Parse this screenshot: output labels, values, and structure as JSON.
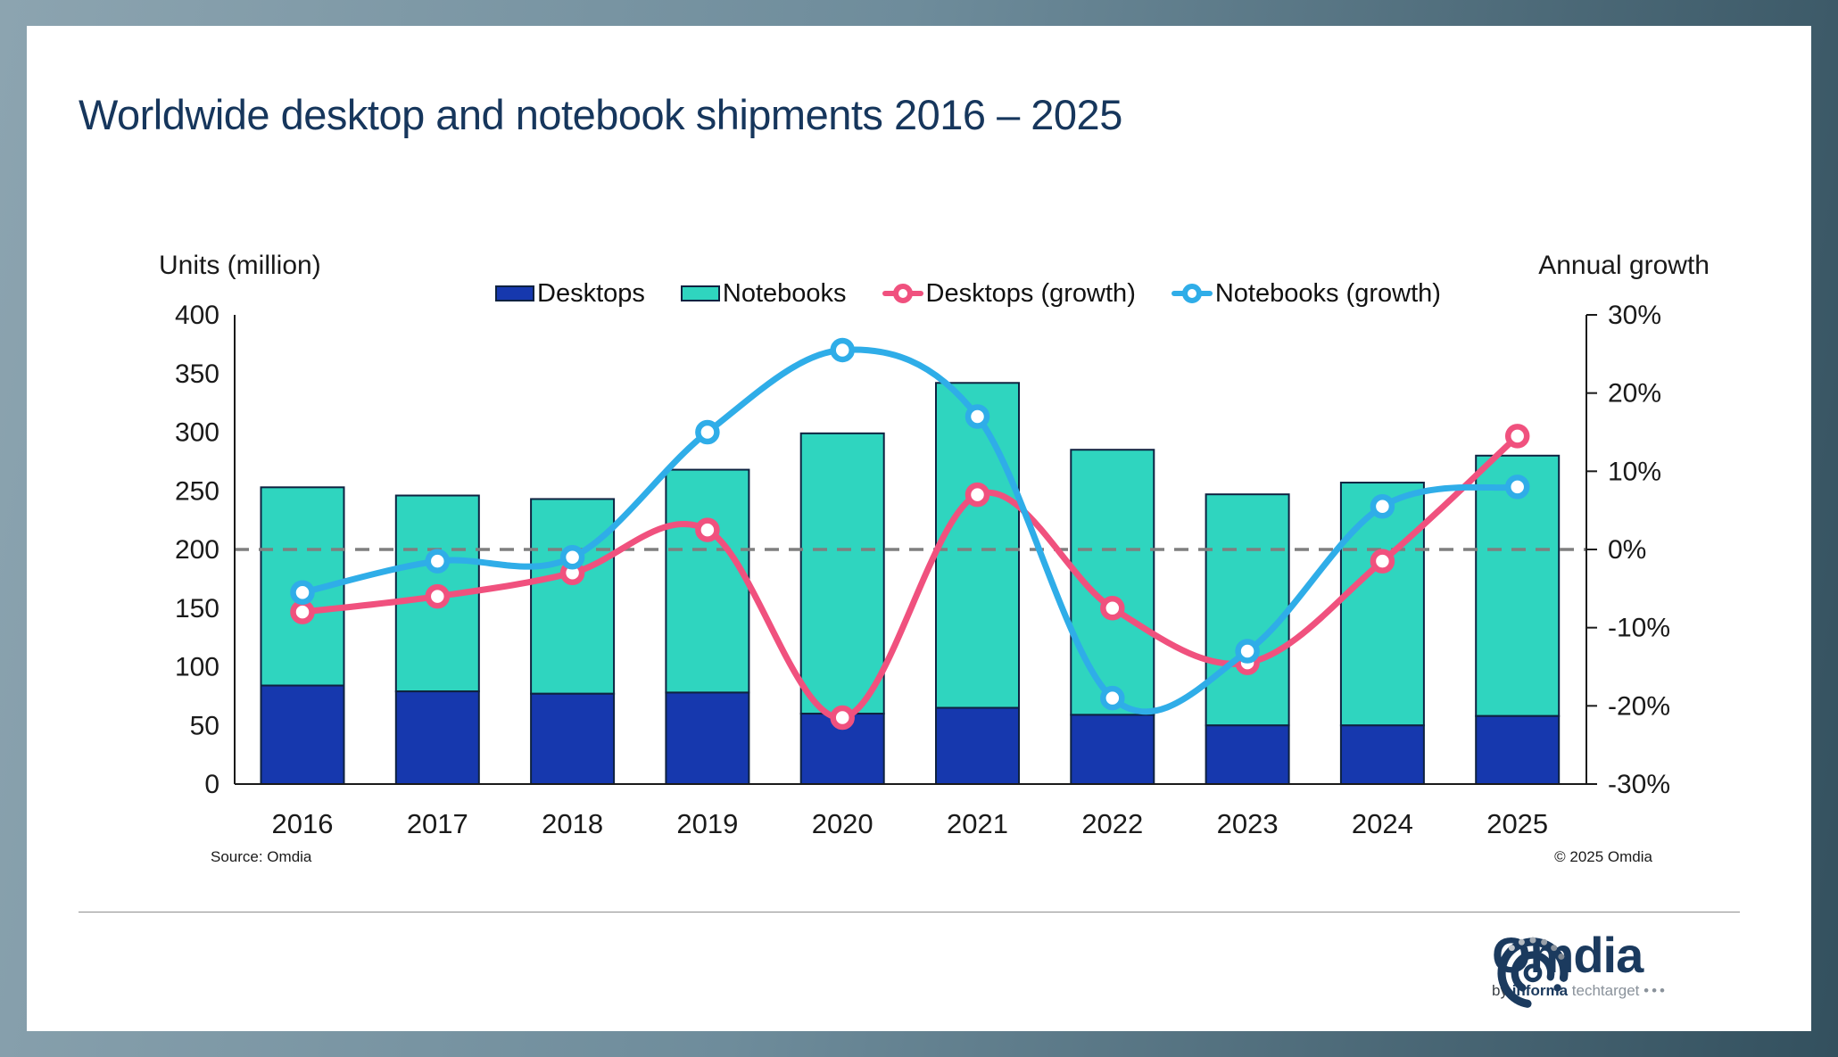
{
  "frame": {
    "gradient_left": "#8CA4B0",
    "gradient_mid": "#6E8C9B",
    "gradient_right": "#33505E"
  },
  "title": "Worldwide desktop and notebook shipments 2016 – 2025",
  "title_color": "#16365C",
  "legend": {
    "items": [
      {
        "label": "Desktops",
        "swatch": "rect",
        "color": "#1638AE"
      },
      {
        "label": "Notebooks",
        "swatch": "rect",
        "color": "#2FD5BF"
      },
      {
        "label": "Desktops (growth)",
        "swatch": "line",
        "color": "#F0517E"
      },
      {
        "label": "Notebooks (growth)",
        "swatch": "line",
        "color": "#2FADE8"
      }
    ]
  },
  "chart_data": {
    "type": "combo-stacked-bar-line",
    "categories": [
      "2016",
      "2017",
      "2018",
      "2019",
      "2020",
      "2021",
      "2022",
      "2023",
      "2024",
      "2025"
    ],
    "series": [
      {
        "name": "Desktops",
        "type": "bar",
        "stack": "units",
        "color": "#1638AE",
        "values": [
          84,
          79,
          77,
          78,
          60,
          65,
          59,
          50,
          50,
          58
        ]
      },
      {
        "name": "Notebooks",
        "type": "bar",
        "stack": "units",
        "color": "#2FD5BF",
        "values": [
          169,
          167,
          166,
          190,
          239,
          277,
          226,
          197,
          207,
          222
        ]
      },
      {
        "name": "Desktops (growth)",
        "type": "line",
        "axis": "right",
        "unit": "%",
        "color": "#F0517E",
        "values": [
          -8,
          -6,
          -3,
          2.5,
          -21.5,
          7,
          -7.5,
          -14.5,
          -1.5,
          14.5
        ]
      },
      {
        "name": "Notebooks (growth)",
        "type": "line",
        "axis": "right",
        "unit": "%",
        "color": "#2FADE8",
        "values": [
          -5.5,
          -1.5,
          -1,
          15,
          25.5,
          17,
          -19,
          -13,
          5.5,
          8
        ]
      }
    ],
    "stacked_totals": [
      253,
      246,
      243,
      268,
      299,
      342,
      285,
      247,
      257,
      280
    ],
    "left_axis": {
      "title": "Units (million)",
      "min": 0,
      "max": 400,
      "step": 50,
      "tick_labels": [
        "400",
        "350",
        "300",
        "250",
        "200",
        "150",
        "100",
        "50",
        "0"
      ]
    },
    "right_axis": {
      "title": "Annual growth",
      "min": -30,
      "max": 30,
      "step": 10,
      "tick_labels": [
        "30%",
        "20%",
        "10%",
        "0%",
        "-10%",
        "-20%",
        "-30%"
      ]
    },
    "zero_line": {
      "style": "dashed",
      "color": "#7F7F7F",
      "right_value": 0
    },
    "grid": false,
    "legend_position": "top"
  },
  "footer": {
    "source": "Source: Omdia",
    "copyright": "© 2025 Omdia"
  },
  "logo": {
    "brand": "Omdia",
    "byline_prefix": "by",
    "byline_bold": "informa",
    "byline_light": "techtarget",
    "byline_dots": "•••",
    "color": "#1B3A5E"
  }
}
